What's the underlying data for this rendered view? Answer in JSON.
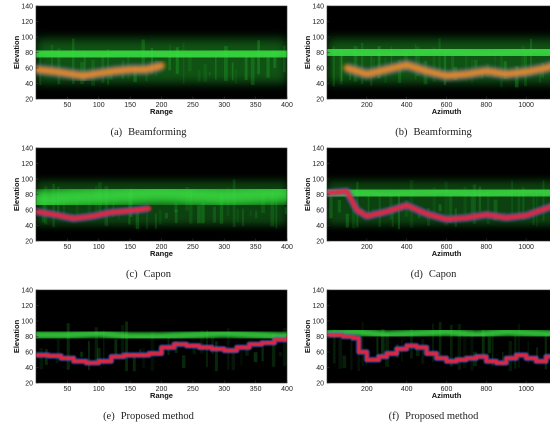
{
  "colors": {
    "background": "#000000",
    "clutter_green": "#2bd636",
    "track_orange": "#f08a24",
    "track_red": "#e8283c",
    "track_blue": "#3a6cf0"
  },
  "chart_data": [
    {
      "type": "heatmap",
      "panel": "(a)",
      "caption": "Beamforming",
      "xlabel": "Range",
      "ylabel": "Elevation",
      "xlim": [
        0,
        400
      ],
      "ylim": [
        20,
        140
      ],
      "xticks": [
        50,
        100,
        150,
        200,
        250,
        300,
        350,
        400
      ],
      "yticks": [
        20,
        40,
        60,
        80,
        100,
        120,
        140
      ],
      "style": "smeared",
      "green_band": {
        "x": [
          0,
          50,
          100,
          150,
          200,
          250,
          300,
          350,
          400
        ],
        "y": [
          80,
          78,
          77,
          80,
          78,
          76,
          78,
          77,
          80
        ]
      },
      "track": {
        "x": [
          0,
          25,
          50,
          75,
          100,
          125,
          150,
          175,
          200
        ],
        "y": [
          58,
          56,
          53,
          50,
          53,
          56,
          58,
          58,
          63
        ],
        "color": "orange"
      }
    },
    {
      "type": "heatmap",
      "panel": "(b)",
      "caption": "Beamforming",
      "xlabel": "Azimuth",
      "ylabel": "Elevation",
      "xlim": [
        0,
        1200
      ],
      "ylim": [
        20,
        140
      ],
      "xticks": [
        200,
        400,
        600,
        800,
        1000,
        1200
      ],
      "yticks": [
        20,
        40,
        60,
        80,
        100,
        120,
        140
      ],
      "style": "smeared",
      "green_band": {
        "x": [
          0,
          150,
          300,
          450,
          600,
          750,
          900,
          1050,
          1200
        ],
        "y": [
          82,
          80,
          78,
          80,
          82,
          78,
          80,
          82,
          80
        ]
      },
      "track": {
        "x": [
          100,
          200,
          300,
          400,
          500,
          600,
          700,
          800,
          900,
          1000,
          1100,
          1200
        ],
        "y": [
          60,
          52,
          58,
          64,
          56,
          50,
          52,
          56,
          52,
          55,
          60,
          68
        ],
        "color": "orange"
      }
    },
    {
      "type": "heatmap",
      "panel": "(c)",
      "caption": "Capon",
      "xlabel": "Range",
      "ylabel": "Elevation",
      "xlim": [
        0,
        400
      ],
      "ylim": [
        20,
        140
      ],
      "xticks": [
        50,
        100,
        150,
        200,
        250,
        300,
        350,
        400
      ],
      "yticks": [
        20,
        40,
        60,
        80,
        100,
        120,
        140
      ],
      "style": "medium",
      "green_band": {
        "x": [
          0,
          50,
          100,
          150,
          200,
          250,
          300,
          350,
          400
        ],
        "y": [
          72,
          76,
          78,
          80,
          82,
          80,
          78,
          80,
          82
        ]
      },
      "track": {
        "x": [
          0,
          30,
          60,
          90,
          120,
          150,
          180
        ],
        "y": [
          58,
          54,
          49,
          52,
          57,
          59,
          62
        ],
        "color": "red"
      }
    },
    {
      "type": "heatmap",
      "panel": "(d)",
      "caption": "Capon",
      "xlabel": "Azimuth",
      "ylabel": "Elevation",
      "xlim": [
        0,
        1200
      ],
      "ylim": [
        20,
        140
      ],
      "xticks": [
        200,
        400,
        600,
        800,
        1000,
        1200
      ],
      "yticks": [
        20,
        40,
        60,
        80,
        100,
        120,
        140
      ],
      "style": "medium",
      "green_band": {
        "x": [
          0,
          150,
          300,
          450,
          600,
          750,
          900,
          1050,
          1200
        ],
        "y": [
          84,
          82,
          80,
          82,
          84,
          80,
          82,
          84,
          82
        ]
      },
      "track": {
        "x": [
          0,
          100,
          150,
          200,
          300,
          400,
          500,
          600,
          700,
          800,
          900,
          1000,
          1100,
          1200
        ],
        "y": [
          82,
          84,
          60,
          52,
          58,
          66,
          55,
          48,
          50,
          54,
          50,
          53,
          62,
          72
        ],
        "color": "red"
      }
    },
    {
      "type": "heatmap",
      "panel": "(e)",
      "caption": "Proposed method",
      "xlabel": "Range",
      "ylabel": "Elevation",
      "xlim": [
        0,
        400
      ],
      "ylim": [
        20,
        140
      ],
      "xticks": [
        50,
        100,
        150,
        200,
        250,
        300,
        350,
        400
      ],
      "yticks": [
        20,
        40,
        60,
        80,
        100,
        120,
        140
      ],
      "style": "sharp",
      "green_band": {
        "x": [
          0,
          50,
          100,
          150,
          200,
          250,
          300,
          350,
          400
        ],
        "y": [
          82,
          82,
          84,
          80,
          80,
          82,
          84,
          82,
          80
        ]
      },
      "track": {
        "x": [
          0,
          20,
          40,
          60,
          80,
          100,
          120,
          140,
          160,
          180,
          200,
          220,
          240,
          260,
          280,
          300,
          320,
          340,
          360,
          380,
          400
        ],
        "y": [
          56,
          55,
          52,
          48,
          46,
          48,
          54,
          56,
          56,
          58,
          66,
          70,
          68,
          66,
          64,
          62,
          66,
          70,
          72,
          76,
          78
        ],
        "color": "red"
      }
    },
    {
      "type": "heatmap",
      "panel": "(f)",
      "caption": "Proposed method",
      "xlabel": "Azimuth",
      "ylabel": "Elevation",
      "xlim": [
        0,
        1200
      ],
      "ylim": [
        20,
        140
      ],
      "xticks": [
        200,
        400,
        600,
        800,
        1000,
        1200
      ],
      "yticks": [
        20,
        40,
        60,
        80,
        100,
        120,
        140
      ],
      "style": "sharp",
      "green_band": {
        "x": [
          0,
          150,
          300,
          450,
          600,
          750,
          900,
          1050,
          1200
        ],
        "y": [
          84,
          86,
          82,
          84,
          86,
          82,
          86,
          84,
          82
        ]
      },
      "track": {
        "x": [
          0,
          80,
          130,
          160,
          200,
          260,
          300,
          350,
          400,
          450,
          500,
          550,
          600,
          650,
          700,
          750,
          800,
          850,
          900,
          950,
          1000,
          1050,
          1100,
          1150,
          1200
        ],
        "y": [
          82,
          80,
          78,
          60,
          50,
          54,
          58,
          64,
          68,
          66,
          58,
          52,
          48,
          50,
          52,
          54,
          48,
          46,
          52,
          56,
          52,
          48,
          54,
          62,
          72
        ],
        "color": "red"
      }
    }
  ]
}
